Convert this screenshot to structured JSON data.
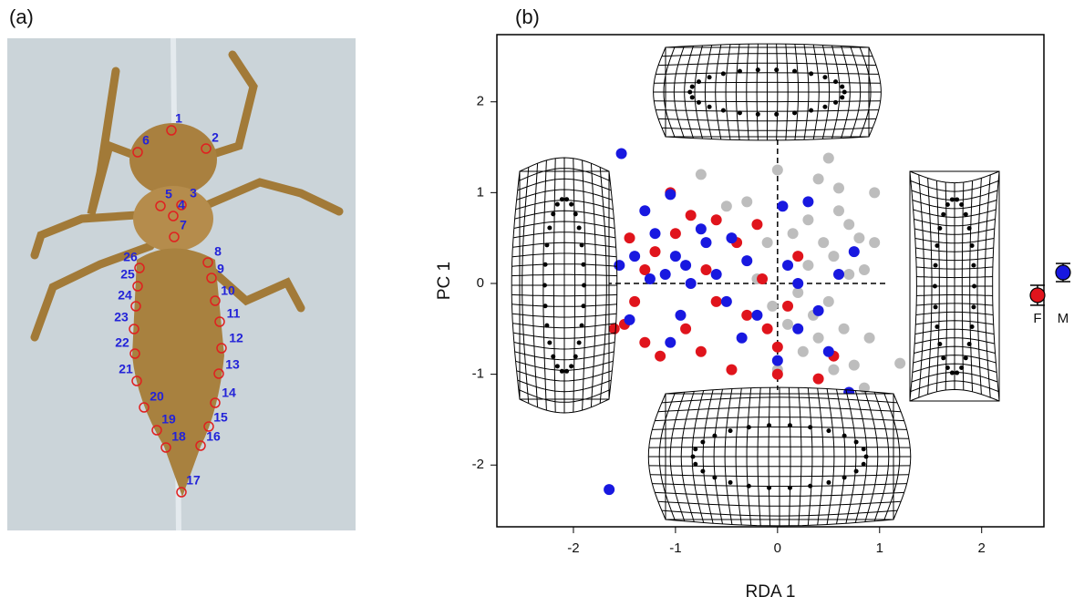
{
  "panel_a": {
    "label": "(a)",
    "landmarks": [
      "1",
      "2",
      "3",
      "4",
      "5",
      "6",
      "7",
      "8",
      "9",
      "10",
      "11",
      "12",
      "13",
      "14",
      "15",
      "16",
      "17",
      "18",
      "19",
      "20",
      "21",
      "22",
      "23",
      "24",
      "25",
      "26"
    ]
  },
  "chart_data": {
    "type": "scatter",
    "label": "(b)",
    "x_label": "RDA 1",
    "y_label": "PC 1",
    "xlim": [
      -2.75,
      2.61
    ],
    "ylim": [
      -2.68,
      2.74
    ],
    "xticks": [
      -2,
      -1,
      0,
      1,
      2
    ],
    "yticks": [
      -2,
      -1,
      0,
      1,
      2
    ],
    "series": [
      {
        "color": "#bdbdbd",
        "x": [
          0.0,
          0.5,
          0.4,
          0.6,
          0.3,
          0.8,
          0.95,
          0.7,
          0.5,
          0.3,
          0.2,
          0.65,
          0.75,
          0.9,
          1.2,
          0.55,
          0.15,
          0.1,
          -0.2,
          -0.1,
          -0.75,
          -0.5,
          -0.3,
          0.45,
          0.85,
          0.4,
          0.25,
          0.6,
          0.85,
          0.0,
          0.55,
          -0.05,
          0.35,
          0.7,
          0.95
        ],
        "values": [
          1.25,
          1.38,
          1.15,
          0.8,
          0.7,
          0.5,
          1.0,
          0.1,
          -0.2,
          0.2,
          -0.1,
          -0.5,
          -0.9,
          -0.6,
          -0.88,
          -0.95,
          0.55,
          -0.45,
          0.05,
          0.45,
          1.2,
          0.85,
          0.9,
          0.45,
          0.15,
          -0.6,
          -0.75,
          1.05,
          -1.15,
          -0.95,
          0.3,
          -0.25,
          -0.35,
          0.65,
          0.45
        ]
      },
      {
        "color": "#e0141c",
        "x": [
          -1.05,
          -1.45,
          -1.2,
          -1.3,
          -1.6,
          -1.5,
          -1.3,
          -1.15,
          -0.9,
          -0.75,
          -0.6,
          -0.4,
          -0.2,
          -0.3,
          -0.1,
          0.0,
          -0.05,
          0.2,
          0.4,
          0.55,
          0.7,
          -0.85,
          -0.6,
          -0.15,
          0.1,
          -1.0,
          -1.4,
          -0.45,
          0.0,
          -0.7,
          -0.91
        ],
        "values": [
          1.0,
          0.5,
          0.35,
          0.15,
          -0.5,
          -0.45,
          -0.65,
          -0.8,
          -0.5,
          -0.75,
          0.7,
          0.45,
          0.65,
          -0.35,
          -0.5,
          -0.7,
          -1.35,
          0.3,
          -1.05,
          -0.8,
          -1.52,
          0.75,
          -0.2,
          0.05,
          -0.25,
          0.55,
          -0.2,
          -0.95,
          -1.0,
          0.15,
          -1.39
        ]
      },
      {
        "color": "#1818e0",
        "x": [
          -1.53,
          -1.05,
          -1.3,
          -1.2,
          -1.0,
          -1.1,
          -0.9,
          -0.7,
          -1.4,
          -1.55,
          -0.6,
          -0.5,
          -0.3,
          -0.2,
          0.1,
          0.2,
          0.3,
          0.4,
          0.6,
          0.5,
          -1.45,
          -1.05,
          -0.85,
          0.0,
          0.3,
          -1.65,
          -0.17,
          0.75,
          -0.75,
          0.05,
          0.2,
          -0.35,
          -0.95,
          -1.25,
          0.7,
          -0.45
        ],
        "values": [
          1.43,
          0.98,
          0.8,
          0.55,
          0.3,
          0.1,
          0.2,
          0.45,
          0.3,
          0.2,
          0.1,
          -0.2,
          0.25,
          -0.35,
          0.2,
          -0.5,
          0.9,
          -0.3,
          0.1,
          -0.75,
          -0.4,
          -0.65,
          0.0,
          -0.85,
          -1.7,
          -2.27,
          -1.4,
          0.35,
          0.6,
          0.85,
          0.0,
          -0.6,
          -0.35,
          0.05,
          -1.2,
          0.5
        ]
      }
    ],
    "means": {
      "categories": [
        "F",
        "M"
      ],
      "values": [
        -0.13,
        0.12
      ],
      "errors": [
        0.11,
        0.1
      ],
      "colors": [
        "#e0141c",
        "#1818e0"
      ]
    }
  }
}
